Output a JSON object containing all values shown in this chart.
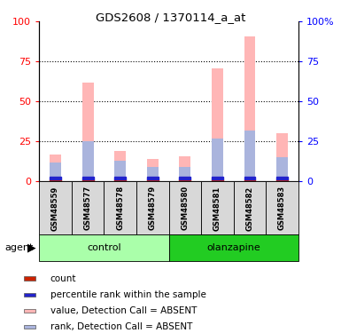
{
  "title": "GDS2608 / 1370114_a_at",
  "samples": [
    "GSM48559",
    "GSM48577",
    "GSM48578",
    "GSM48579",
    "GSM48580",
    "GSM48581",
    "GSM48582",
    "GSM48583"
  ],
  "pink_bars": [
    17,
    62,
    19,
    14,
    16,
    71,
    91,
    30
  ],
  "blue_bars": [
    12,
    25,
    13,
    9,
    9,
    27,
    32,
    15
  ],
  "ylim": [
    0,
    100
  ],
  "yticks": [
    0,
    25,
    50,
    75,
    100
  ],
  "yticklabels_left": [
    "0",
    "25",
    "50",
    "75",
    "100"
  ],
  "yticklabels_right": [
    "0",
    "25",
    "50",
    "75",
    "100%"
  ],
  "pink_color": "#ffb6b6",
  "blue_bar_color": "#aab4dd",
  "red_dot_color": "#cc2200",
  "blue_dot_color": "#2222cc",
  "ctrl_color_light": "#ccffcc",
  "ctrl_color_dark": "#33dd33",
  "olanz_color_light": "#ccffcc",
  "olanz_color_dark": "#33dd33",
  "group_ctrl_color": "#aaffaa",
  "group_olanz_color": "#22cc22",
  "sample_box_color": "#d8d8d8",
  "bar_width": 0.35,
  "legend_items": [
    {
      "color": "#cc2200",
      "label": "count"
    },
    {
      "color": "#2222cc",
      "label": "percentile rank within the sample"
    },
    {
      "color": "#ffb6b6",
      "label": "value, Detection Call = ABSENT"
    },
    {
      "color": "#aab4dd",
      "label": "rank, Detection Call = ABSENT"
    }
  ]
}
